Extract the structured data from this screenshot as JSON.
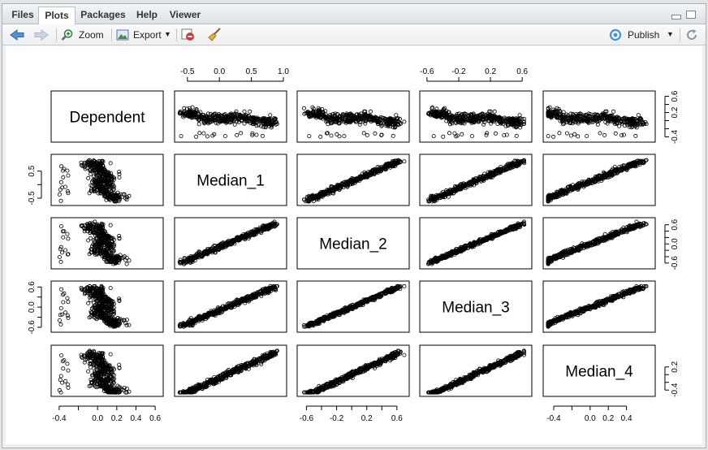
{
  "tabs": [
    {
      "label": "Files"
    },
    {
      "label": "Plots"
    },
    {
      "label": "Packages"
    },
    {
      "label": "Help"
    },
    {
      "label": "Viewer"
    }
  ],
  "toolbar": {
    "zoom": "Zoom",
    "export": "Export",
    "publish": "Publish"
  },
  "icons": {
    "back": "arrow-left-icon",
    "forward": "arrow-right-icon",
    "zoom": "magnifier-icon",
    "export": "image-export-icon",
    "remove": "remove-plot-icon",
    "clear": "broom-icon",
    "publish": "publish-icon",
    "refresh": "refresh-icon"
  },
  "chart_data": {
    "type": "scatter",
    "variables": [
      "Dependent",
      "Median_1",
      "Median_2",
      "Median_3",
      "Median_4"
    ],
    "ranges": {
      "Dependent": [
        -0.45,
        0.65
      ],
      "Median_1": [
        -0.65,
        1.0
      ],
      "Median_2": [
        -0.68,
        0.72
      ],
      "Median_3": [
        -0.65,
        0.68
      ],
      "Median_4": [
        -0.48,
        0.68
      ]
    },
    "axes": {
      "top": [
        {
          "col": 1,
          "ticks": [
            "-0.5",
            "0.0",
            "0.5",
            "1.0"
          ],
          "values": [
            -0.5,
            0.0,
            0.5,
            1.0
          ]
        },
        {
          "col": 3,
          "ticks": [
            "-0.6",
            "-0.2",
            "0.2",
            "0.6"
          ],
          "values": [
            -0.6,
            -0.2,
            0.2,
            0.6
          ]
        }
      ],
      "bottom": [
        {
          "col": 0,
          "ticks": [
            "-0.4",
            "0.0",
            "0.2",
            "0.4",
            "0.6"
          ],
          "values": [
            -0.4,
            0.0,
            0.2,
            0.4,
            0.6
          ],
          "minor": [
            -0.2
          ]
        },
        {
          "col": 2,
          "ticks": [
            "-0.6",
            "-0.2",
            "0.2",
            "0.6"
          ],
          "values": [
            -0.6,
            -0.2,
            0.2,
            0.6
          ],
          "minor": [
            -0.4,
            0.0,
            0.4
          ]
        },
        {
          "col": 4,
          "ticks": [
            "-0.4",
            "0.0",
            "0.2",
            "0.4"
          ],
          "values": [
            -0.4,
            0.0,
            0.2,
            0.4
          ],
          "minor": [
            -0.2
          ]
        }
      ],
      "left": [
        {
          "row": 1,
          "ticks": [
            "-0.5",
            "0.5"
          ],
          "values": [
            -0.5,
            0.5
          ],
          "minor": [
            0.0
          ]
        },
        {
          "row": 3,
          "ticks": [
            "-0.6",
            "0.0",
            "0.6"
          ],
          "values": [
            -0.6,
            0.0,
            0.6
          ],
          "minor": [
            -0.3,
            0.3
          ]
        }
      ],
      "right": [
        {
          "row": 0,
          "ticks": [
            "-0.4",
            "0.2",
            "0.6"
          ],
          "values": [
            -0.4,
            0.2,
            0.6
          ],
          "minor": [
            -0.2,
            0.0,
            0.4
          ]
        },
        {
          "row": 2,
          "ticks": [
            "-0.6",
            "0.0",
            "0.6"
          ],
          "values": [
            -0.6,
            0.0,
            0.6
          ],
          "minor": [
            -0.4,
            -0.2,
            0.2,
            0.4
          ]
        },
        {
          "row": 4,
          "ticks": [
            "-0.4",
            "0.2"
          ],
          "values": [
            -0.4,
            0.2
          ],
          "minor": [
            -0.2,
            0.0
          ]
        }
      ]
    }
  }
}
